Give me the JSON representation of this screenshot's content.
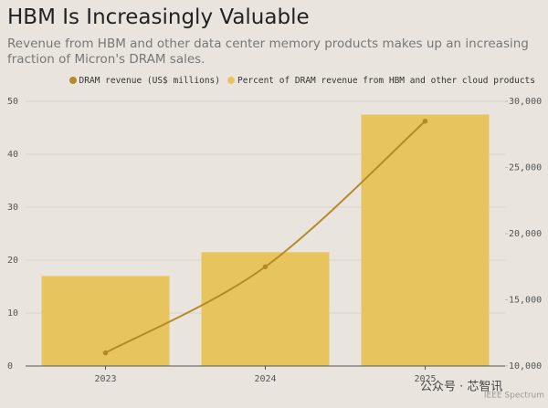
{
  "chart_data": {
    "type": "bar",
    "title": "HBM Is Increasingly Valuable",
    "subtitle": "Revenue from HBM and other data center memory products makes up an increasing fraction of Micron's DRAM sales.",
    "categories": [
      "2023",
      "2024",
      "2025"
    ],
    "series": [
      {
        "name": "DRAM revenue (US$ millions)",
        "type": "line",
        "axis": "y2",
        "color": "#b58a2a",
        "values": [
          11000,
          17500,
          28500
        ]
      },
      {
        "name": "Percent of DRAM revenue from HBM and other cloud products",
        "type": "bar",
        "color": "#e8c45f",
        "values": [
          17,
          21.5,
          47.5
        ]
      }
    ],
    "ylim": [
      0,
      50
    ],
    "yticks": [
      0,
      10,
      20,
      30,
      40,
      50
    ],
    "y2lim": [
      10000,
      30000
    ],
    "y2ticks": [
      {
        "value": 10000,
        "label": "10,000"
      },
      {
        "value": 15000,
        "label": "15,000"
      },
      {
        "value": 20000,
        "label": "20,000"
      },
      {
        "value": 25000,
        "label": "25,000"
      },
      {
        "value": 30000,
        "label": "30,000"
      }
    ],
    "grid": true,
    "watermarks": [
      "公众号 · 芯智讯",
      "IEEE Spectrum"
    ]
  }
}
